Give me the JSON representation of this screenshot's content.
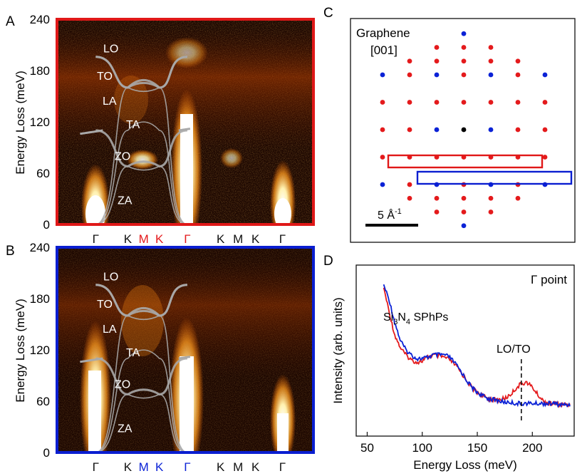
{
  "colors": {
    "red": "#e41a1c",
    "blue": "#0b22d6",
    "frame_a": "#e01818",
    "frame_b": "#0a1ed0",
    "black_atom": "#000000",
    "bg_dark": "#1a0500",
    "branch_gray": "#a9a9a9"
  },
  "panels": {
    "A": {
      "letter": "A",
      "ylabel": "Energy Loss (meV)",
      "yticks": [
        "0",
        "60",
        "120",
        "180",
        "240"
      ],
      "xticks": [
        {
          "label": "Γ",
          "color": "black"
        },
        {
          "label": "K",
          "color": "black"
        },
        {
          "label": "M",
          "color": "red"
        },
        {
          "label": "K",
          "color": "red"
        },
        {
          "label": "Γ",
          "color": "red"
        },
        {
          "label": "K",
          "color": "black"
        },
        {
          "label": "M",
          "color": "black"
        },
        {
          "label": "K",
          "color": "black"
        },
        {
          "label": "Γ",
          "color": "black"
        }
      ],
      "branch_labels": [
        "LO",
        "TO",
        "LA",
        "TA",
        "ZO",
        "ZA"
      ]
    },
    "B": {
      "letter": "B",
      "ylabel": "Energy Loss (meV)",
      "yticks": [
        "0",
        "60",
        "120",
        "180",
        "240"
      ],
      "xticks": [
        {
          "label": "Γ",
          "color": "black"
        },
        {
          "label": "K",
          "color": "black"
        },
        {
          "label": "M",
          "color": "blue"
        },
        {
          "label": "K",
          "color": "blue"
        },
        {
          "label": "Γ",
          "color": "blue"
        },
        {
          "label": "K",
          "color": "black"
        },
        {
          "label": "M",
          "color": "black"
        },
        {
          "label": "K",
          "color": "black"
        },
        {
          "label": "Γ",
          "color": "black"
        }
      ],
      "branch_labels": [
        "LO",
        "TO",
        "LA",
        "TA",
        "ZO",
        "ZA"
      ]
    },
    "C": {
      "letter": "C",
      "title_line1": "Graphene",
      "title_line2": "[001]",
      "scale_bar_label": "5 Å",
      "scale_bar_sup": "-1"
    },
    "D": {
      "letter": "D",
      "annotation": "Γ point",
      "sphp_label_main": "Si",
      "sphp_label_sub1": "3",
      "sphp_label_mid": "N",
      "sphp_label_sub2": "4",
      "sphp_label_tail": " SPhPs",
      "peak_label": "LO/TO",
      "xlabel": "Energy Loss (meV)",
      "ylabel": "Intensity (arb. units)",
      "xticks": [
        "50",
        "100",
        "150",
        "200"
      ]
    }
  },
  "chart_data": [
    {
      "type": "heatmap",
      "panel": "A",
      "ylabel": "Energy Loss (meV)",
      "ylim": [
        0,
        240
      ],
      "path": [
        "Γ",
        "K",
        "M",
        "K",
        "Γ",
        "K",
        "M",
        "K",
        "Γ"
      ],
      "branches": {
        "LO": {
          "gamma": 196,
          "K": 160,
          "M": 176
        },
        "TO": {
          "gamma": 196,
          "K": 160,
          "M": 170
        },
        "LA": {
          "gamma": 0,
          "K": 160,
          "M": 152
        },
        "TA": {
          "gamma": 0,
          "K": 110,
          "M": 128
        },
        "ZO": {
          "gamma": 110,
          "K": 68,
          "M": 78
        },
        "ZA": {
          "gamma": 0,
          "K": 68,
          "M": 60
        }
      },
      "intense_features": [
        {
          "at": "Γ",
          "energy_range": [
            0,
            60
          ]
        },
        {
          "at": "Γ",
          "energy_range": [
            0,
            150
          ]
        },
        {
          "at": "M",
          "energy": 78
        },
        {
          "at": "Γ",
          "energy": 200
        }
      ]
    },
    {
      "type": "heatmap",
      "panel": "B",
      "ylabel": "Energy Loss (meV)",
      "ylim": [
        0,
        240
      ],
      "path": [
        "Γ",
        "K",
        "M",
        "K",
        "Γ",
        "K",
        "M",
        "K",
        "Γ"
      ],
      "branches": {
        "LO": {
          "gamma": 196,
          "K": 160,
          "M": 176
        },
        "TO": {
          "gamma": 196,
          "K": 160,
          "M": 170
        },
        "LA": {
          "gamma": 0,
          "K": 160,
          "M": 152
        },
        "TA": {
          "gamma": 0,
          "K": 110,
          "M": 128
        },
        "ZO": {
          "gamma": 110,
          "K": 68,
          "M": 78
        },
        "ZA": {
          "gamma": 0,
          "K": 68,
          "M": 60
        }
      }
    },
    {
      "type": "scatter",
      "panel": "C",
      "title": "Graphene [001]",
      "series": [
        {
          "name": "red",
          "color": "#e41a1c"
        },
        {
          "name": "blue",
          "color": "#0b22d6"
        },
        {
          "name": "center",
          "color": "#000000"
        }
      ],
      "points": [
        {
          "x": 0,
          "y": 3.5,
          "c": "blue"
        },
        {
          "x": -1,
          "y": 3,
          "c": "red"
        },
        {
          "x": 0,
          "y": 3,
          "c": "red"
        },
        {
          "x": 1,
          "y": 3,
          "c": "red"
        },
        {
          "x": -2,
          "y": 2.5,
          "c": "red"
        },
        {
          "x": -1,
          "y": 2.5,
          "c": "red"
        },
        {
          "x": 0,
          "y": 2.5,
          "c": "red"
        },
        {
          "x": 1,
          "y": 2.5,
          "c": "red"
        },
        {
          "x": 2,
          "y": 2.5,
          "c": "red"
        },
        {
          "x": -3,
          "y": 2,
          "c": "blue"
        },
        {
          "x": -2,
          "y": 2,
          "c": "red"
        },
        {
          "x": -1,
          "y": 2,
          "c": "blue"
        },
        {
          "x": 0,
          "y": 2,
          "c": "red"
        },
        {
          "x": 1,
          "y": 2,
          "c": "blue"
        },
        {
          "x": 2,
          "y": 2,
          "c": "red"
        },
        {
          "x": 3,
          "y": 2,
          "c": "blue"
        },
        {
          "x": -3,
          "y": 1,
          "c": "red"
        },
        {
          "x": -2,
          "y": 1,
          "c": "red"
        },
        {
          "x": -1,
          "y": 1,
          "c": "red"
        },
        {
          "x": 0,
          "y": 1,
          "c": "red"
        },
        {
          "x": 1,
          "y": 1,
          "c": "red"
        },
        {
          "x": 2,
          "y": 1,
          "c": "red"
        },
        {
          "x": 3,
          "y": 1,
          "c": "red"
        },
        {
          "x": -3,
          "y": 0,
          "c": "red"
        },
        {
          "x": -2,
          "y": 0,
          "c": "red"
        },
        {
          "x": -1,
          "y": 0,
          "c": "blue"
        },
        {
          "x": 0,
          "y": 0,
          "c": "center"
        },
        {
          "x": 1,
          "y": 0,
          "c": "blue"
        },
        {
          "x": 2,
          "y": 0,
          "c": "red"
        },
        {
          "x": 3,
          "y": 0,
          "c": "red"
        },
        {
          "x": -3,
          "y": -1,
          "c": "red"
        },
        {
          "x": -2,
          "y": -1,
          "c": "red"
        },
        {
          "x": -1,
          "y": -1,
          "c": "red"
        },
        {
          "x": 0,
          "y": -1,
          "c": "red"
        },
        {
          "x": 1,
          "y": -1,
          "c": "red"
        },
        {
          "x": 2,
          "y": -1,
          "c": "red"
        },
        {
          "x": 3,
          "y": -1,
          "c": "red"
        },
        {
          "x": -3,
          "y": -2,
          "c": "blue"
        },
        {
          "x": -2,
          "y": -2,
          "c": "red"
        },
        {
          "x": -1,
          "y": -2,
          "c": "blue"
        },
        {
          "x": 0,
          "y": -2,
          "c": "red"
        },
        {
          "x": 1,
          "y": -2,
          "c": "blue"
        },
        {
          "x": 2,
          "y": -2,
          "c": "red"
        },
        {
          "x": 3,
          "y": -2,
          "c": "blue"
        },
        {
          "x": -2,
          "y": -2.5,
          "c": "red"
        },
        {
          "x": -1,
          "y": -2.5,
          "c": "red"
        },
        {
          "x": 0,
          "y": -2.5,
          "c": "red"
        },
        {
          "x": 1,
          "y": -2.5,
          "c": "red"
        },
        {
          "x": 2,
          "y": -2.5,
          "c": "red"
        },
        {
          "x": -1,
          "y": -3,
          "c": "red"
        },
        {
          "x": 0,
          "y": -3,
          "c": "red"
        },
        {
          "x": 1,
          "y": -3,
          "c": "red"
        },
        {
          "x": 0,
          "y": -3.5,
          "c": "blue"
        }
      ]
    },
    {
      "type": "line",
      "panel": "D",
      "xlabel": "Energy Loss (meV)",
      "ylabel": "Intensity (arb. units)",
      "xlim": [
        40,
        238
      ],
      "ylim": [
        0,
        1
      ],
      "x": [
        65,
        70,
        75,
        80,
        85,
        90,
        95,
        100,
        105,
        110,
        115,
        120,
        125,
        130,
        135,
        140,
        145,
        150,
        155,
        160,
        165,
        170,
        175,
        180,
        185,
        190,
        195,
        200,
        205,
        210,
        215,
        220,
        225,
        230,
        235
      ],
      "series": [
        {
          "name": "red",
          "color": "#e41a1c",
          "values": [
            0.98,
            0.78,
            0.6,
            0.5,
            0.44,
            0.4,
            0.38,
            0.39,
            0.42,
            0.44,
            0.43,
            0.42,
            0.4,
            0.36,
            0.3,
            0.24,
            0.18,
            0.14,
            0.11,
            0.09,
            0.08,
            0.08,
            0.09,
            0.12,
            0.17,
            0.21,
            0.22,
            0.18,
            0.12,
            0.07,
            0.05,
            0.05,
            0.04,
            0.04,
            0.04
          ]
        },
        {
          "name": "blue",
          "color": "#0b22d6",
          "values": [
            1.0,
            0.88,
            0.7,
            0.56,
            0.48,
            0.44,
            0.41,
            0.41,
            0.42,
            0.44,
            0.44,
            0.44,
            0.42,
            0.37,
            0.31,
            0.24,
            0.18,
            0.14,
            0.11,
            0.09,
            0.08,
            0.07,
            0.06,
            0.06,
            0.05,
            0.05,
            0.05,
            0.05,
            0.05,
            0.05,
            0.05,
            0.05,
            0.04,
            0.04,
            0.04
          ]
        }
      ],
      "marker_line_x": 190
    }
  ]
}
